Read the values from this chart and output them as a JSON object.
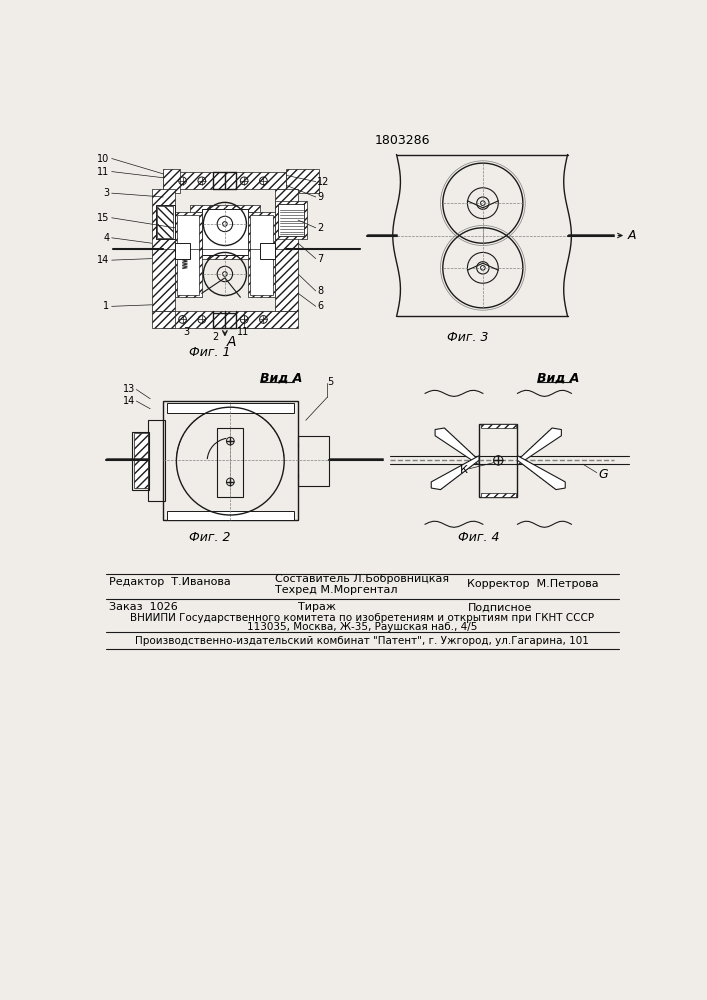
{
  "patent_number": "1803286",
  "bg": "#f0ede8",
  "lc": "#1a1a1a",
  "fig1_caption": "Фиг. 1",
  "fig2_caption": "Фиг. 2",
  "fig3_caption": "Фиг. 3",
  "fig4_caption": "Фиг. 4",
  "view_a": "Вид А",
  "arrow_a": "A",
  "lbl_k": "К",
  "lbl_g": "G",
  "footer1l": "Редактор  Т.Иванова",
  "footer1m1": "Составитель Л.Бобровницкая",
  "footer1m2": "Техред М.Моргентал",
  "footer1r": "Корректор  М.Петрова",
  "footer2l": "Заказ  1026",
  "footer2m": "Тираж",
  "footer2r": "Подписное",
  "footer3": "ВНИИПИ Государственного комитета по изобретениям и открытиям при ГКНТ СССР",
  "footer4": "113035, Москва, Ж-35, Раушская наб., 4/5",
  "footer5": "Производственно-издательский комбинат \"Патент\", г. Ужгород, ул.Гагарина, 101"
}
